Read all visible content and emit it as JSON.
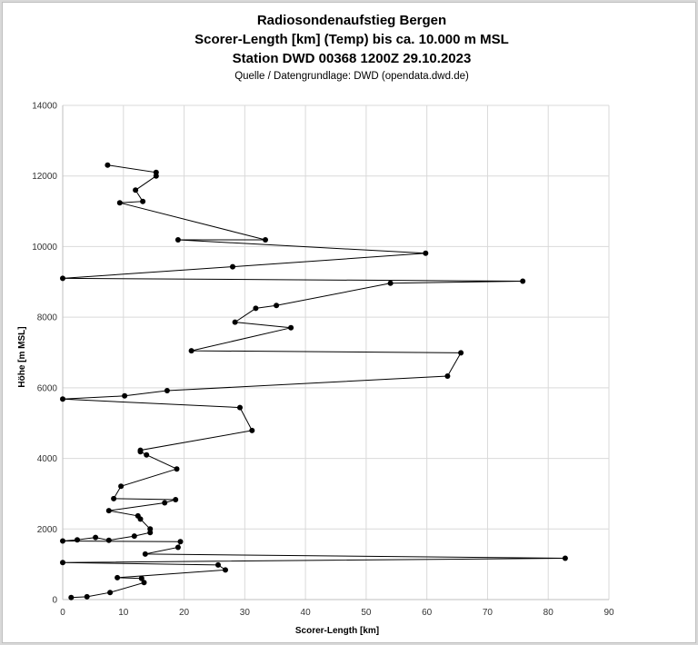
{
  "chart_data": {
    "type": "line",
    "title_lines": [
      "Radiosondenaufstieg Bergen",
      "Scorer-Length [km] (Temp) bis ca. 10.000 m MSL",
      "Station DWD 00368 1200Z 29.10.2023"
    ],
    "subtitle": "Quelle / Datengrundlage: DWD (opendata.dwd.de)",
    "xlabel": "Scorer-Length [km]",
    "ylabel": "Höhe [m MSL]",
    "xlim": [
      0,
      90
    ],
    "ylim": [
      0,
      14000
    ],
    "xticks": [
      "0",
      "10",
      "20",
      "30",
      "40",
      "50",
      "60",
      "70",
      "80",
      "90"
    ],
    "yticks": [
      "0",
      "2000",
      "4000",
      "6000",
      "8000",
      "10000",
      "12000",
      "14000"
    ],
    "grid": true,
    "legend": "none",
    "line_color": "#000000",
    "series": [
      {
        "points": [
          [
            1.4,
            60
          ],
          [
            4.0,
            80
          ],
          [
            7.8,
            200
          ],
          [
            13.4,
            480
          ],
          [
            13.0,
            600
          ],
          [
            9.0,
            620
          ],
          [
            26.8,
            840
          ],
          [
            25.6,
            980
          ],
          [
            0.0,
            1050
          ],
          [
            82.8,
            1170
          ],
          [
            13.6,
            1290
          ],
          [
            19.0,
            1480
          ],
          [
            19.4,
            1640
          ],
          [
            0.0,
            1660
          ],
          [
            2.4,
            1690
          ],
          [
            5.4,
            1760
          ],
          [
            7.6,
            1680
          ],
          [
            11.8,
            1800
          ],
          [
            14.4,
            1900
          ],
          [
            14.4,
            2000
          ],
          [
            12.8,
            2280
          ],
          [
            12.4,
            2370
          ],
          [
            7.6,
            2520
          ],
          [
            16.8,
            2740
          ],
          [
            18.6,
            2830
          ],
          [
            8.4,
            2860
          ],
          [
            9.6,
            3210
          ],
          [
            18.8,
            3700
          ],
          [
            13.8,
            4100
          ],
          [
            12.8,
            4190
          ],
          [
            12.8,
            4230
          ],
          [
            31.2,
            4790
          ],
          [
            29.2,
            5440
          ],
          [
            0.0,
            5680
          ],
          [
            10.2,
            5770
          ],
          [
            17.2,
            5920
          ],
          [
            63.4,
            6330
          ],
          [
            65.6,
            6990
          ],
          [
            21.2,
            7050
          ],
          [
            37.6,
            7700
          ],
          [
            28.4,
            7860
          ],
          [
            31.8,
            8250
          ],
          [
            35.2,
            8330
          ],
          [
            54.0,
            8960
          ],
          [
            75.8,
            9020
          ],
          [
            0.0,
            9100
          ],
          [
            28.0,
            9430
          ],
          [
            59.8,
            9810
          ],
          [
            19.0,
            10190
          ],
          [
            33.4,
            10190
          ],
          [
            9.4,
            11240
          ],
          [
            13.2,
            11280
          ],
          [
            12.0,
            11600
          ],
          [
            15.4,
            12000
          ],
          [
            15.4,
            12100
          ],
          [
            7.4,
            12310
          ]
        ]
      }
    ]
  }
}
